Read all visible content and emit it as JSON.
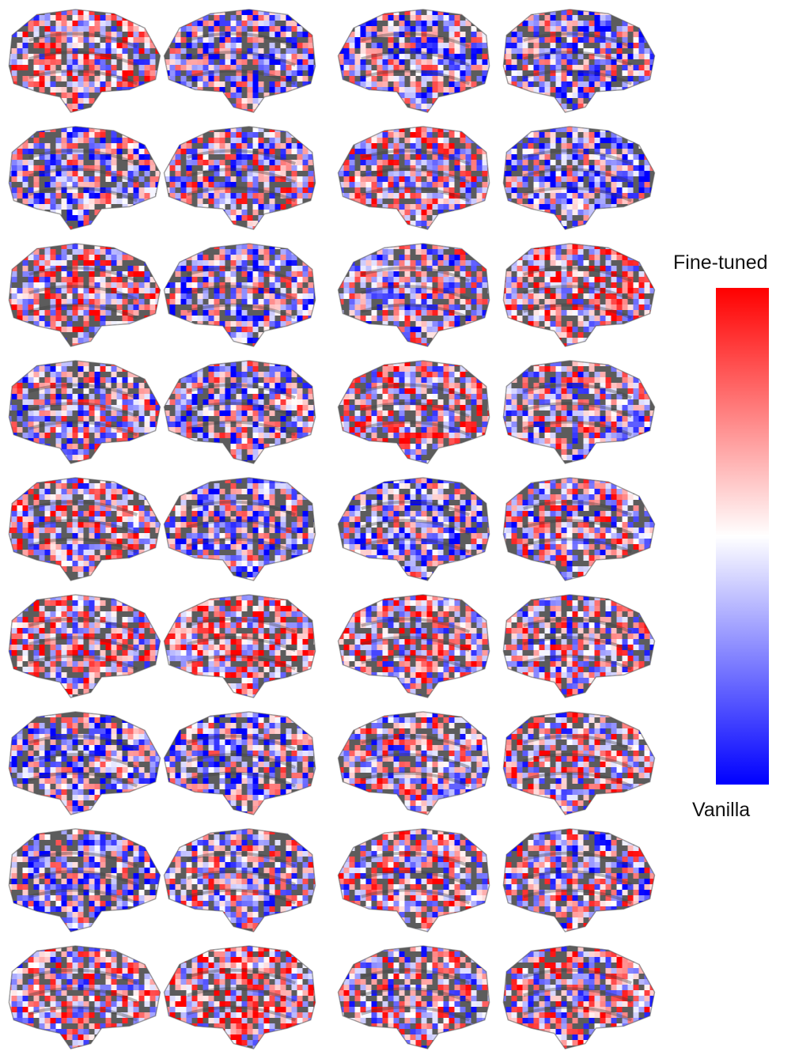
{
  "figure": {
    "rows": 9,
    "views": [
      "lateral",
      "lateral",
      "medial",
      "medial"
    ],
    "surface_color": "#5c5c5c",
    "colormap": [
      "#ff0000",
      "#ffffff",
      "#0000ff"
    ]
  },
  "colorbar": {
    "top_label": "Fine-tuned",
    "bottom_label": "Vanilla"
  }
}
